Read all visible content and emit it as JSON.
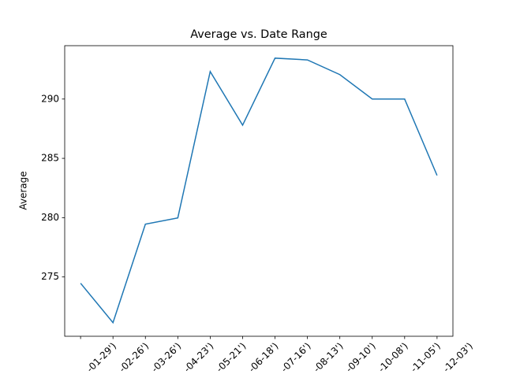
{
  "chart_data": {
    "type": "line",
    "title": "Average vs. Date Range",
    "y_label": "Average",
    "categories": [
      "-01-29')",
      "-02-26')",
      "-03-26')",
      "-04-23')",
      "-05-21')",
      "-06-18')",
      "-07-16')",
      "-08-13')",
      "-09-10')",
      "-10-08')",
      "-11-05')",
      "-12-03')"
    ],
    "series": [
      {
        "name": "Average",
        "color": "#1f77b4",
        "values": [
          274.47,
          271.15,
          279.45,
          279.98,
          292.32,
          287.8,
          293.45,
          293.3,
          292.06,
          290.0,
          290.0,
          283.56
        ]
      }
    ],
    "ylim": [
      270.0,
      294.5
    ],
    "yticks": [
      275,
      280,
      285,
      290
    ],
    "grid": false
  }
}
